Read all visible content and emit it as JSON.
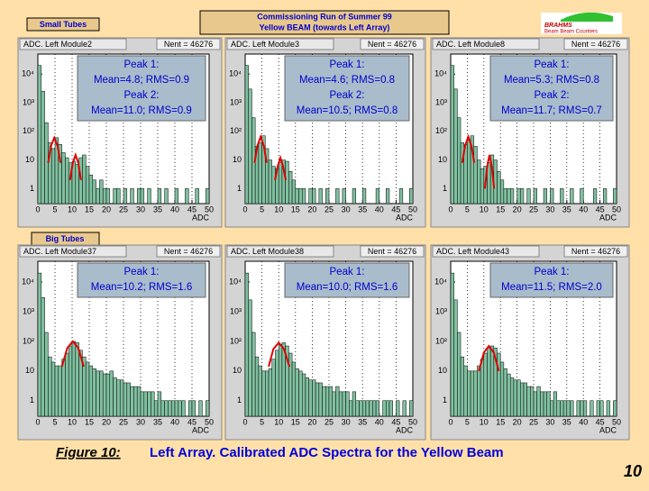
{
  "header": {
    "line1": "Commissioning Run of Summer 99",
    "line2": "Yellow BEAM (towards Left Array)"
  },
  "logo": {
    "name": "BRAHMS",
    "sub": "Beam Beam Counters"
  },
  "groups": {
    "small": "Small Tubes",
    "big": "Big Tubes"
  },
  "chart_data": [
    {
      "type": "histogram",
      "title": "ADC. Left Module2",
      "entries": "Nent = 46276",
      "stats": [
        "Peak 1:",
        "Mean=4.8; RMS=0.9",
        "Peak 2:",
        "Mean=11.0; RMS=0.9"
      ],
      "bins": [
        0,
        1,
        2,
        3,
        4,
        5,
        6,
        7,
        8,
        9,
        10,
        11,
        12,
        13,
        14,
        15,
        16,
        17,
        18,
        19,
        20,
        21,
        22,
        23,
        24,
        25,
        26,
        27,
        28,
        29,
        30,
        31,
        32,
        33,
        34,
        35,
        36,
        37,
        38,
        39,
        40,
        41,
        42,
        43,
        44,
        45,
        46,
        47,
        48,
        49,
        50
      ],
      "values": [
        20000,
        2500,
        200,
        40,
        25,
        60,
        35,
        18,
        12,
        8,
        9,
        7,
        12,
        15,
        6,
        3,
        2,
        1,
        2,
        1,
        1,
        0,
        1,
        1,
        0,
        1,
        0,
        1,
        0,
        1,
        1,
        0,
        1,
        0,
        0,
        1,
        0,
        1,
        0,
        0,
        1,
        0,
        0,
        1,
        0,
        0,
        1,
        0,
        0,
        1
      ],
      "color": "#80c0a0",
      "fit": {
        "x": [
          3,
          3.8,
          4.8,
          5.8,
          6.6,
          8,
          9.4,
          10.2,
          11,
          11.8,
          12.6
        ],
        "values": [
          8,
          30,
          60,
          30,
          8,
          null,
          2,
          8,
          15,
          8,
          2
        ],
        "color": "#e00000"
      },
      "xlim": [
        0,
        50
      ],
      "xticks": [
        0,
        5,
        10,
        15,
        20,
        25,
        30,
        35,
        40,
        45,
        50
      ],
      "xlabel": "ADC",
      "ylim": [
        0.3,
        50000
      ],
      "yticks": [
        1,
        10,
        {
          "value": 100,
          "label": "10²"
        },
        {
          "value": 1000,
          "label": "10³"
        },
        {
          "value": 10000,
          "label": "10⁴"
        }
      ],
      "log_y": true,
      "grid": true
    },
    {
      "type": "histogram",
      "title": "ADC. Left Module3",
      "entries": "Nent = 46276",
      "stats": [
        "Peak 1:",
        "Mean=4.6; RMS=0.8",
        "Peak 2:",
        "Mean=10.5; RMS=0.8"
      ],
      "bins": [
        0,
        1,
        2,
        3,
        4,
        5,
        6,
        7,
        8,
        9,
        10,
        11,
        12,
        13,
        14,
        15,
        16,
        17,
        18,
        19,
        20,
        21,
        22,
        23,
        24,
        25,
        26,
        27,
        28,
        29,
        30,
        31,
        32,
        33,
        34,
        35,
        36,
        37,
        38,
        39,
        40,
        41,
        42,
        43,
        44,
        45,
        46,
        47,
        48,
        49,
        50
      ],
      "values": [
        20000,
        3000,
        300,
        30,
        40,
        70,
        25,
        10,
        6,
        5,
        8,
        10,
        9,
        4,
        2,
        1,
        1,
        1,
        0,
        1,
        1,
        0,
        1,
        0,
        1,
        0,
        0,
        1,
        0,
        1,
        0,
        0,
        1,
        0,
        0,
        1,
        0,
        0,
        0,
        1,
        0,
        0,
        1,
        0,
        0,
        0,
        1,
        0,
        0,
        1
      ],
      "color": "#80c0a0",
      "fit": {
        "x": [
          2.8,
          3.6,
          4.6,
          5.6,
          6.4,
          8,
          8.9,
          9.7,
          10.5,
          11.3,
          12.1
        ],
        "values": [
          8,
          30,
          65,
          30,
          8,
          null,
          2,
          6,
          12,
          6,
          2
        ],
        "color": "#e00000"
      },
      "xlim": [
        0,
        50
      ],
      "xticks": [
        0,
        5,
        10,
        15,
        20,
        25,
        30,
        35,
        40,
        45,
        50
      ],
      "xlabel": "ADC",
      "ylim": [
        0.3,
        50000
      ],
      "yticks": [
        1,
        10,
        {
          "value": 100,
          "label": "10²"
        },
        {
          "value": 1000,
          "label": "10³"
        },
        {
          "value": 10000,
          "label": "10⁴"
        }
      ],
      "log_y": true,
      "grid": true
    },
    {
      "type": "histogram",
      "title": "ADC. Left Module8",
      "entries": "Nent = 46276",
      "stats": [
        "Peak 1:",
        "Mean=5.3; RMS=0.8",
        "Peak 2:",
        "Mean=11.7; RMS=0.7"
      ],
      "bins": [
        0,
        1,
        2,
        3,
        4,
        5,
        6,
        7,
        8,
        9,
        10,
        11,
        12,
        13,
        14,
        15,
        16,
        17,
        18,
        19,
        20,
        21,
        22,
        23,
        24,
        25,
        26,
        27,
        28,
        29,
        30,
        31,
        32,
        33,
        34,
        35,
        36,
        37,
        38,
        39,
        40,
        41,
        42,
        43,
        44,
        45,
        46,
        47,
        48,
        49,
        50
      ],
      "values": [
        20000,
        3000,
        300,
        40,
        35,
        50,
        70,
        30,
        10,
        5,
        6,
        8,
        15,
        10,
        4,
        2,
        1,
        1,
        1,
        0,
        1,
        1,
        0,
        1,
        0,
        1,
        0,
        0,
        1,
        0,
        1,
        0,
        0,
        1,
        0,
        0,
        1,
        0,
        0,
        1,
        0,
        0,
        0,
        1,
        0,
        0,
        1,
        0,
        0,
        1
      ],
      "color": "#80c0a0",
      "fit": {
        "x": [
          3.5,
          4.3,
          5.3,
          6.3,
          7.1,
          9,
          10.3,
          11,
          11.7,
          12.4,
          13.1
        ],
        "values": [
          8,
          30,
          65,
          30,
          8,
          null,
          1,
          6,
          15,
          6,
          1
        ],
        "color": "#e00000"
      },
      "xlim": [
        0,
        50
      ],
      "xticks": [
        0,
        5,
        10,
        15,
        20,
        25,
        30,
        35,
        40,
        45,
        50
      ],
      "xlabel": "ADC",
      "ylim": [
        0.3,
        50000
      ],
      "yticks": [
        1,
        10,
        {
          "value": 100,
          "label": "10²"
        },
        {
          "value": 1000,
          "label": "10³"
        },
        {
          "value": 10000,
          "label": "10⁴"
        }
      ],
      "log_y": true,
      "grid": true
    },
    {
      "type": "histogram",
      "title": "ADC. Left Module37",
      "entries": "Nent = 46276",
      "stats": [
        "Peak 1:",
        "Mean=10.2; RMS=1.6"
      ],
      "bins": [
        0,
        1,
        2,
        3,
        4,
        5,
        6,
        7,
        8,
        9,
        10,
        11,
        12,
        13,
        14,
        15,
        16,
        17,
        18,
        19,
        20,
        21,
        22,
        23,
        24,
        25,
        26,
        27,
        28,
        29,
        30,
        31,
        32,
        33,
        34,
        35,
        36,
        37,
        38,
        39,
        40,
        41,
        42,
        43,
        44,
        45,
        46,
        47,
        48,
        49,
        50
      ],
      "values": [
        20000,
        3000,
        200,
        30,
        20,
        15,
        15,
        25,
        40,
        70,
        100,
        90,
        50,
        30,
        20,
        15,
        12,
        10,
        10,
        8,
        8,
        10,
        6,
        5,
        5,
        4,
        4,
        3,
        3,
        3,
        2,
        2,
        2,
        2,
        1,
        2,
        1,
        1,
        1,
        1,
        1,
        1,
        1,
        0,
        1,
        1,
        0,
        1,
        0,
        1
      ],
      "color": "#80c0a0",
      "fit": {
        "x": [
          7,
          8.6,
          10.2,
          11.8,
          13.4
        ],
        "values": [
          14,
          60,
          100,
          60,
          14
        ],
        "color": "#e00000"
      },
      "xlim": [
        0,
        50
      ],
      "xticks": [
        0,
        5,
        10,
        15,
        20,
        25,
        30,
        35,
        40,
        45,
        50
      ],
      "xlabel": "ADC",
      "ylim": [
        0.3,
        50000
      ],
      "yticks": [
        1,
        10,
        {
          "value": 100,
          "label": "10²"
        },
        {
          "value": 1000,
          "label": "10³"
        },
        {
          "value": 10000,
          "label": "10⁴"
        }
      ],
      "log_y": true,
      "grid": true
    },
    {
      "type": "histogram",
      "title": "ADC. Left Module38",
      "entries": "Nent = 46276",
      "stats": [
        "Peak 1:",
        "Mean=10.0; RMS=1.6"
      ],
      "bins": [
        0,
        1,
        2,
        3,
        4,
        5,
        6,
        7,
        8,
        9,
        10,
        11,
        12,
        13,
        14,
        15,
        16,
        17,
        18,
        19,
        20,
        21,
        22,
        23,
        24,
        25,
        26,
        27,
        28,
        29,
        30,
        31,
        32,
        33,
        34,
        35,
        36,
        37,
        38,
        39,
        40,
        41,
        42,
        43,
        44,
        45,
        46,
        47,
        48,
        49,
        50
      ],
      "values": [
        20000,
        2500,
        200,
        30,
        15,
        10,
        10,
        12,
        25,
        50,
        80,
        90,
        70,
        40,
        20,
        12,
        10,
        8,
        6,
        5,
        5,
        4,
        4,
        3,
        3,
        3,
        2,
        3,
        2,
        2,
        2,
        1,
        2,
        1,
        1,
        1,
        1,
        1,
        1,
        1,
        0,
        1,
        1,
        1,
        0,
        1,
        0,
        1,
        0,
        1
      ],
      "color": "#80c0a0",
      "fit": {
        "x": [
          7,
          8.4,
          10,
          11.6,
          13.2
        ],
        "values": [
          14,
          55,
          90,
          55,
          14
        ],
        "color": "#e00000"
      },
      "xlim": [
        0,
        50
      ],
      "xticks": [
        0,
        5,
        10,
        15,
        20,
        25,
        30,
        35,
        40,
        45,
        50
      ],
      "xlabel": "ADC",
      "ylim": [
        0.3,
        50000
      ],
      "yticks": [
        1,
        10,
        {
          "value": 100,
          "label": "10²"
        },
        {
          "value": 1000,
          "label": "10³"
        },
        {
          "value": 10000,
          "label": "10⁴"
        }
      ],
      "log_y": true,
      "grid": true
    },
    {
      "type": "histogram",
      "title": "ADC. Left Module43",
      "entries": "Nent = 46276",
      "stats": [
        "Peak 1:",
        "Mean=11.5; RMS=2.0"
      ],
      "bins": [
        0,
        1,
        2,
        3,
        4,
        5,
        6,
        7,
        8,
        9,
        10,
        11,
        12,
        13,
        14,
        15,
        16,
        17,
        18,
        19,
        20,
        21,
        22,
        23,
        24,
        25,
        26,
        27,
        28,
        29,
        30,
        31,
        32,
        33,
        34,
        35,
        36,
        37,
        38,
        39,
        40,
        41,
        42,
        43,
        44,
        45,
        46,
        47,
        48,
        49,
        50
      ],
      "values": [
        20000,
        2500,
        200,
        30,
        15,
        10,
        10,
        10,
        15,
        25,
        40,
        60,
        70,
        60,
        40,
        20,
        12,
        8,
        6,
        5,
        5,
        4,
        4,
        3,
        3,
        2,
        3,
        2,
        2,
        2,
        1,
        2,
        1,
        1,
        1,
        1,
        1,
        0,
        1,
        1,
        1,
        0,
        1,
        0,
        1,
        1,
        0,
        1,
        0,
        1
      ],
      "color": "#80c0a0",
      "fit": {
        "x": [
          8.5,
          10,
          11.5,
          13,
          14.5
        ],
        "values": [
          10,
          42,
          70,
          42,
          10
        ],
        "color": "#e00000"
      },
      "xlim": [
        0,
        50
      ],
      "xticks": [
        0,
        5,
        10,
        15,
        20,
        25,
        30,
        35,
        40,
        45,
        50
      ],
      "xlabel": "ADC",
      "ylim": [
        0.3,
        50000
      ],
      "yticks": [
        1,
        10,
        {
          "value": 100,
          "label": "10²"
        },
        {
          "value": 1000,
          "label": "10³"
        },
        {
          "value": 10000,
          "label": "10⁴"
        }
      ],
      "log_y": true,
      "grid": true
    }
  ],
  "caption": {
    "label": "Figure 10:",
    "text": "Left Array. Calibrated ADC Spectra for the Yellow Beam"
  },
  "page_number": "10"
}
